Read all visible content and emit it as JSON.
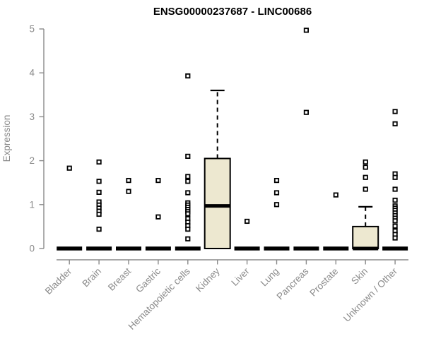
{
  "colors": {
    "background": "#ffffff",
    "axis": "#8a8a8a",
    "tick_text": "#8a8a8a",
    "title_text": "#000000",
    "box_fill": "#ede8d0",
    "box_stroke": "#000000",
    "point_stroke": "#000000",
    "point_fill": "#ffffff"
  },
  "chart_data": {
    "type": "boxplot",
    "title": "ENSG00000237687 - LINC00686",
    "xlabel": "",
    "ylabel": "Expression",
    "ylim": [
      0,
      5
    ],
    "yticks": [
      0,
      1,
      2,
      3,
      4,
      5
    ],
    "grid": false,
    "legend": false,
    "categories": [
      "Bladder",
      "Brain",
      "Breast",
      "Gastric",
      "Hematopoietic cells",
      "Kidney",
      "Liver",
      "Lung",
      "Pancreas",
      "Prostate",
      "Skin",
      "Unknown / Other"
    ],
    "boxes": [
      {
        "category": "Bladder",
        "q1": 0,
        "median": 0,
        "q3": 0,
        "whisker_low": 0,
        "whisker_high": 0,
        "outliers": [
          1.83
        ]
      },
      {
        "category": "Brain",
        "q1": 0,
        "median": 0,
        "q3": 0,
        "whisker_low": 0,
        "whisker_high": 0,
        "outliers": [
          1.97,
          1.53,
          1.28,
          1.06,
          0.99,
          0.92,
          0.85,
          0.78,
          0.44
        ]
      },
      {
        "category": "Breast",
        "q1": 0,
        "median": 0,
        "q3": 0,
        "whisker_low": 0,
        "whisker_high": 0,
        "outliers": [
          1.55,
          1.3
        ]
      },
      {
        "category": "Gastric",
        "q1": 0,
        "median": 0,
        "q3": 0,
        "whisker_low": 0,
        "whisker_high": 0,
        "outliers": [
          1.55,
          0.72
        ]
      },
      {
        "category": "Hematopoietic cells",
        "q1": 0,
        "median": 0,
        "q3": 0,
        "whisker_low": 0,
        "whisker_high": 0,
        "outliers": [
          3.93,
          2.1,
          1.64,
          1.53,
          1.27,
          1.04,
          0.99,
          0.94,
          0.89,
          0.84,
          0.79,
          0.68,
          0.6,
          0.52,
          0.44,
          0.22
        ]
      },
      {
        "category": "Kidney",
        "q1": 0,
        "median": 0.97,
        "q3": 2.05,
        "whisker_low": 0,
        "whisker_high": 3.6,
        "outliers": []
      },
      {
        "category": "Liver",
        "q1": 0,
        "median": 0,
        "q3": 0,
        "whisker_low": 0,
        "whisker_high": 0,
        "outliers": [
          0.62
        ]
      },
      {
        "category": "Lung",
        "q1": 0,
        "median": 0,
        "q3": 0,
        "whisker_low": 0,
        "whisker_high": 0,
        "outliers": [
          1.55,
          1.27,
          1.0
        ]
      },
      {
        "category": "Pancreas",
        "q1": 0,
        "median": 0,
        "q3": 0,
        "whisker_low": 0,
        "whisker_high": 0,
        "outliers": [
          4.97,
          3.1
        ]
      },
      {
        "category": "Prostate",
        "q1": 0,
        "median": 0,
        "q3": 0,
        "whisker_low": 0,
        "whisker_high": 0,
        "outliers": [
          1.22
        ]
      },
      {
        "category": "Skin",
        "q1": 0,
        "median": 0,
        "q3": 0.5,
        "whisker_low": 0,
        "whisker_high": 0.95,
        "outliers": [
          1.97,
          1.85,
          1.62,
          1.35
        ]
      },
      {
        "category": "Unknown / Other",
        "q1": 0,
        "median": 0,
        "q3": 0,
        "whisker_low": 0,
        "whisker_high": 0,
        "outliers": [
          3.12,
          2.84,
          1.7,
          1.62,
          1.35,
          1.1,
          0.97,
          0.92,
          0.87,
          0.81,
          0.75,
          0.69,
          0.63,
          0.51,
          0.4,
          0.32,
          0.24
        ]
      }
    ]
  }
}
